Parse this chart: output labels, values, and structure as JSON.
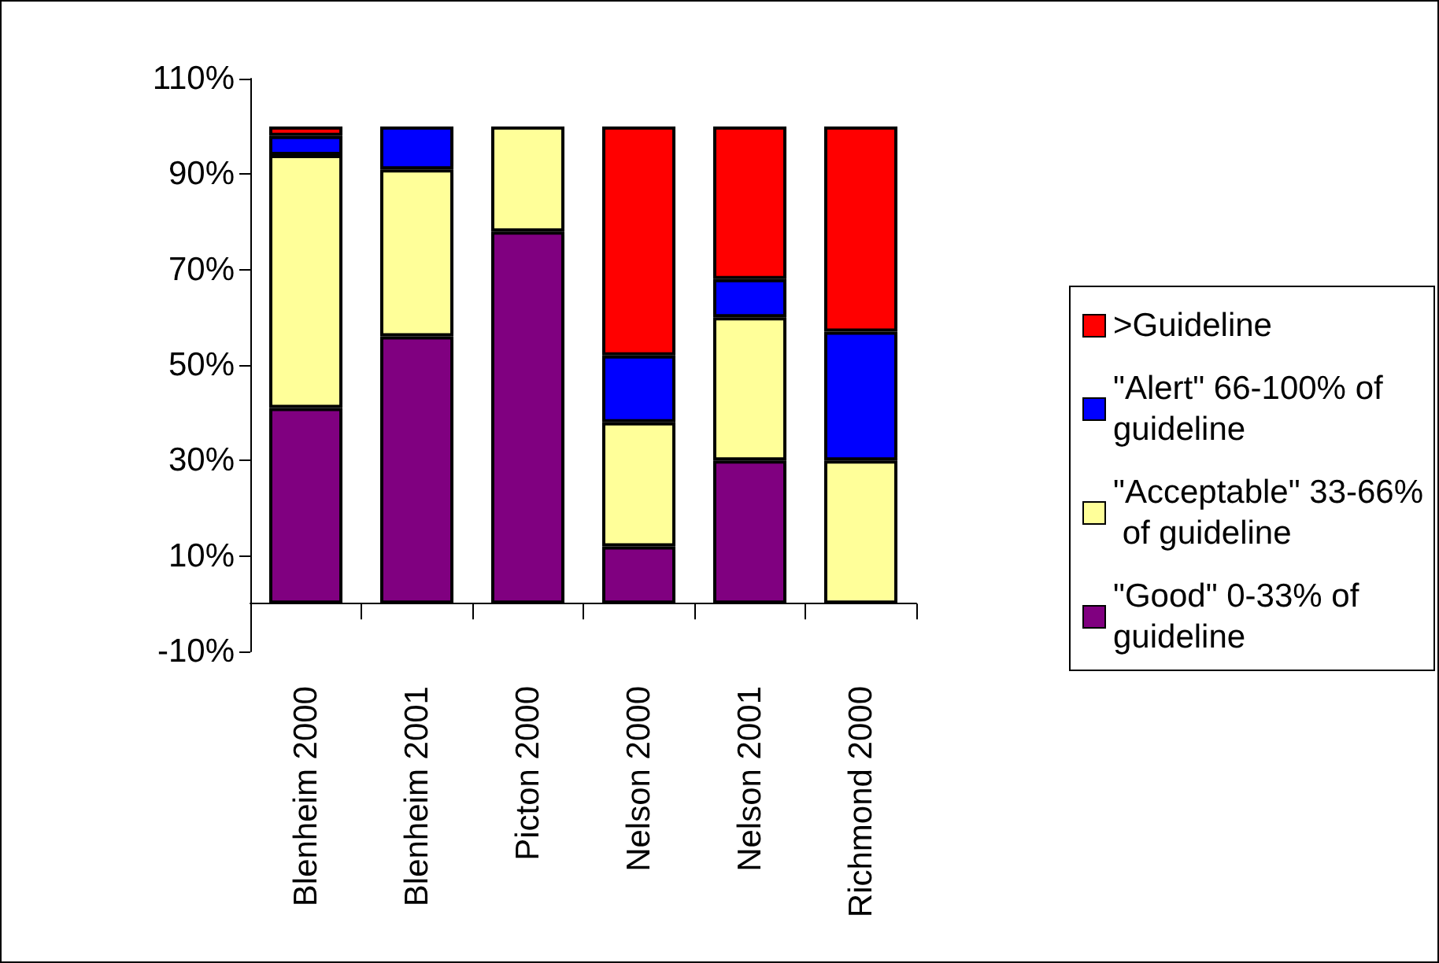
{
  "chart_data": {
    "type": "bar",
    "stacked": true,
    "categories": [
      "Blenheim 2000",
      "Blenheim 2001",
      "Picton 2000",
      "Nelson 2000",
      "Nelson 2001",
      "Richmond 2000"
    ],
    "series": [
      {
        "name": "\"Good\" 0-33% of guideline",
        "color": "#800080",
        "values": [
          41,
          56,
          78,
          12,
          30,
          0
        ]
      },
      {
        "name": "\"Acceptable\" 33-66% of guideline",
        "color": "#ffff99",
        "values": [
          53,
          35,
          22,
          26,
          30,
          30
        ]
      },
      {
        "name": "\"Alert\" 66-100% of guideline",
        "color": "#0000ff",
        "values": [
          4,
          9,
          0,
          14,
          8,
          27
        ]
      },
      {
        "name": ">Guideline",
        "color": "#ff0000",
        "values": [
          2,
          0,
          0,
          48,
          32,
          43
        ]
      }
    ],
    "ylim": [
      -10,
      110
    ],
    "yticks": [
      {
        "value": -10,
        "label": "-10%"
      },
      {
        "value": 10,
        "label": "10%"
      },
      {
        "value": 30,
        "label": "30%"
      },
      {
        "value": 50,
        "label": "50%"
      },
      {
        "value": 70,
        "label": "70%"
      },
      {
        "value": 90,
        "label": "90%"
      },
      {
        "value": 110,
        "label": "110%"
      }
    ],
    "grid": false,
    "legend": "right"
  }
}
